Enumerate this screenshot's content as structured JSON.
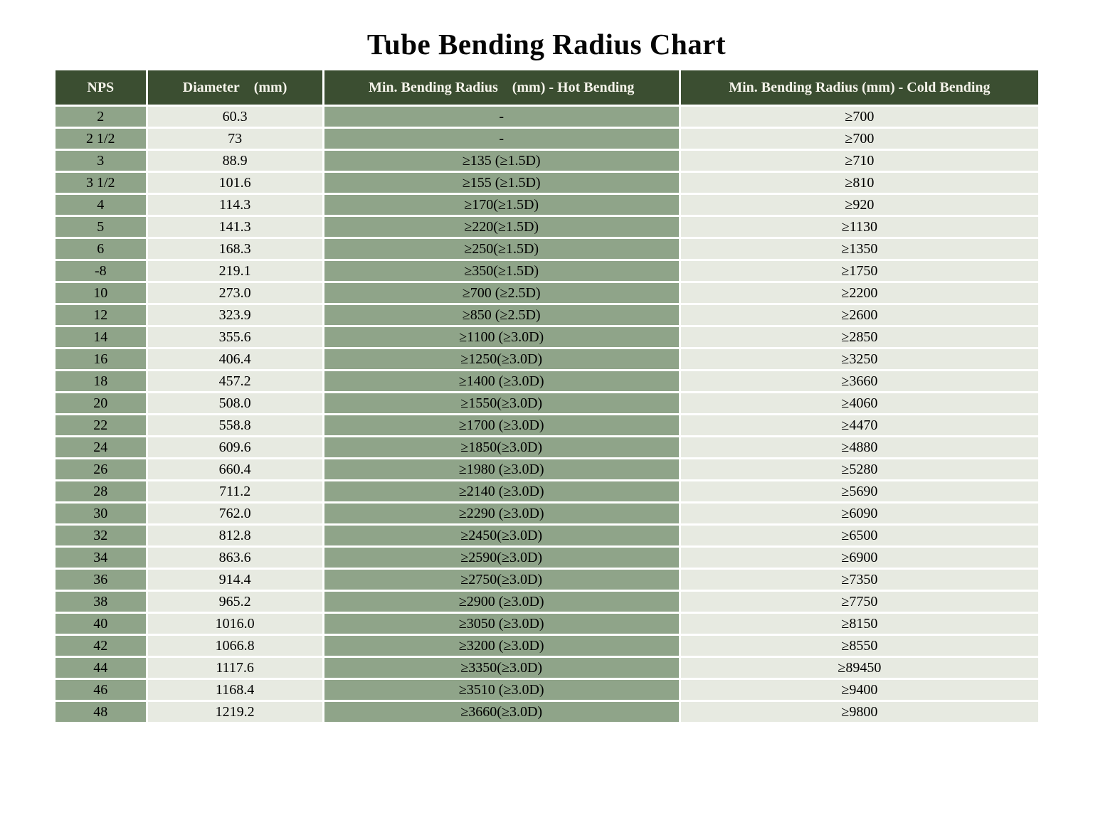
{
  "page": {
    "title": "Tube Bending Radius Chart"
  },
  "colors": {
    "header_bg": "#3b4e31",
    "header_text": "#f5f3ea",
    "sage_cell": "#8fa489",
    "light_cell": "#e7eae1",
    "cell_border": "#ffffff",
    "body_text": "#000000"
  },
  "chart_data": {
    "type": "table",
    "title": "Tube Bending Radius Chart",
    "legend_position": "none",
    "grid": "white cell gaps, column-tinted (NPS/Hot = sage green, Diameter/Cold = pale gray-green)",
    "columns": [
      "NPS",
      "Diameter (mm)",
      "Min. Bending Radius (mm) - Hot Bending",
      "Min. Bending Radius (mm) - Cold Bending"
    ],
    "rows": [
      [
        "2",
        "60.3",
        "-",
        "≥700"
      ],
      [
        "2 1/2",
        "73",
        "-",
        "≥700"
      ],
      [
        "3",
        "88.9",
        "≥135 (≥1.5D)",
        "≥710"
      ],
      [
        "3 1/2",
        "101.6",
        "≥155 (≥1.5D)",
        "≥810"
      ],
      [
        "4",
        "114.3",
        "≥170(≥1.5D)",
        "≥920"
      ],
      [
        "5",
        "141.3",
        "≥220(≥1.5D)",
        "≥1130"
      ],
      [
        "6",
        "168.3",
        "≥250(≥1.5D)",
        "≥1350"
      ],
      [
        "-8",
        "219.1",
        "≥350(≥1.5D)",
        "≥1750"
      ],
      [
        "10",
        "273.0",
        "≥700 (≥2.5D)",
        "≥2200"
      ],
      [
        "12",
        "323.9",
        "≥850 (≥2.5D)",
        "≥2600"
      ],
      [
        "14",
        "355.6",
        "≥1100 (≥3.0D)",
        "≥2850"
      ],
      [
        "16",
        "406.4",
        "≥1250(≥3.0D)",
        "≥3250"
      ],
      [
        "18",
        "457.2",
        "≥1400 (≥3.0D)",
        "≥3660"
      ],
      [
        "20",
        "508.0",
        "≥1550(≥3.0D)",
        "≥4060"
      ],
      [
        "22",
        "558.8",
        "≥1700 (≥3.0D)",
        "≥4470"
      ],
      [
        "24",
        "609.6",
        "≥1850(≥3.0D)",
        "≥4880"
      ],
      [
        "26",
        "660.4",
        "≥1980 (≥3.0D)",
        "≥5280"
      ],
      [
        "28",
        "711.2",
        "≥2140 (≥3.0D)",
        "≥5690"
      ],
      [
        "30",
        "762.0",
        "≥2290 (≥3.0D)",
        "≥6090"
      ],
      [
        "32",
        "812.8",
        "≥2450(≥3.0D)",
        "≥6500"
      ],
      [
        "34",
        "863.6",
        "≥2590(≥3.0D)",
        "≥6900"
      ],
      [
        "36",
        "914.4",
        "≥2750(≥3.0D)",
        "≥7350"
      ],
      [
        "38",
        "965.2",
        "≥2900 (≥3.0D)",
        "≥7750"
      ],
      [
        "40",
        "1016.0",
        "≥3050 (≥3.0D)",
        "≥8150"
      ],
      [
        "42",
        "1066.8",
        "≥3200 (≥3.0D)",
        "≥8550"
      ],
      [
        "44",
        "1117.6",
        "≥3350(≥3.0D)",
        "≥89450"
      ],
      [
        "46",
        "1168.4",
        "≥3510 (≥3.0D)",
        "≥9400"
      ],
      [
        "48",
        "1219.2",
        "≥3660(≥3.0D)",
        "≥9800"
      ]
    ]
  }
}
